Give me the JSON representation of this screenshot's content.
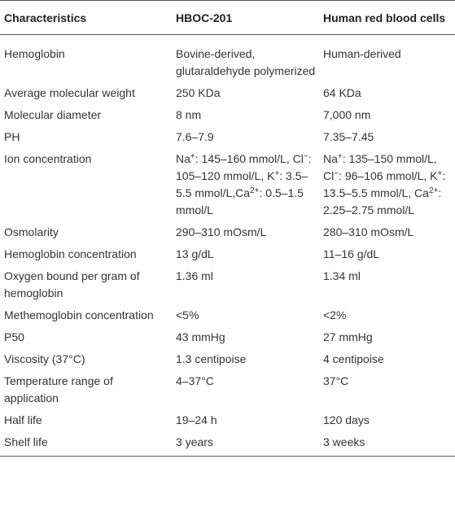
{
  "table": {
    "header": [
      "Characteristics",
      "HBOC-201",
      "Human red blood cells"
    ],
    "rows": [
      [
        "Hemoglobin",
        "Bovine-derived, glutaraldehyde polymerized",
        "Human-derived"
      ],
      [
        "Average molecular weight",
        "250 KDa",
        "64 KDa"
      ],
      [
        "Molecular diameter",
        "8 nm",
        "7,000 nm"
      ],
      [
        "PH",
        "7.6–7.9",
        "7.35–7.45"
      ],
      [
        "Ion concentration",
        {
          "parts": [
            "Na",
            "+",
            ": 145–160 mmol/L, Cl",
            "−",
            ": 105–120 mmol/L, K",
            "+",
            ": 3.5–5.5 mmol/L,Ca",
            "2+",
            ": 0.5–1.5 mmol/L"
          ]
        },
        {
          "parts": [
            "Na",
            "+",
            ": 135–150 mmol/L, Cl",
            "−",
            ": 96–106 mmol/L, K",
            "+",
            ": 13.5–5.5 mmol/L, Ca",
            "2+",
            ": 2.25–2.75 mmol/L"
          ]
        }
      ],
      [
        "Osmolarity",
        "290–310 mOsm/L",
        "280–310 mOsm/L"
      ],
      [
        "Hemoglobin concentration",
        "13 g/dL",
        "11–16 g/dL"
      ],
      [
        "Oxygen bound per gram of hemoglobin",
        "1.36 ml",
        "1.34 ml"
      ],
      [
        "Methemoglobin concentration",
        "<5%",
        "<2%"
      ],
      [
        "P50",
        "43 mmHg",
        "27 mmHg"
      ],
      [
        "Viscosity (37°C)",
        "1.3 centipoise",
        "4 centipoise"
      ],
      [
        "Temperature range of application",
        "4–37°C",
        "37°C"
      ],
      [
        "Half life",
        "19–24 h",
        "120 days"
      ],
      [
        "Shelf life",
        "3 years",
        "3 weeks"
      ]
    ]
  }
}
